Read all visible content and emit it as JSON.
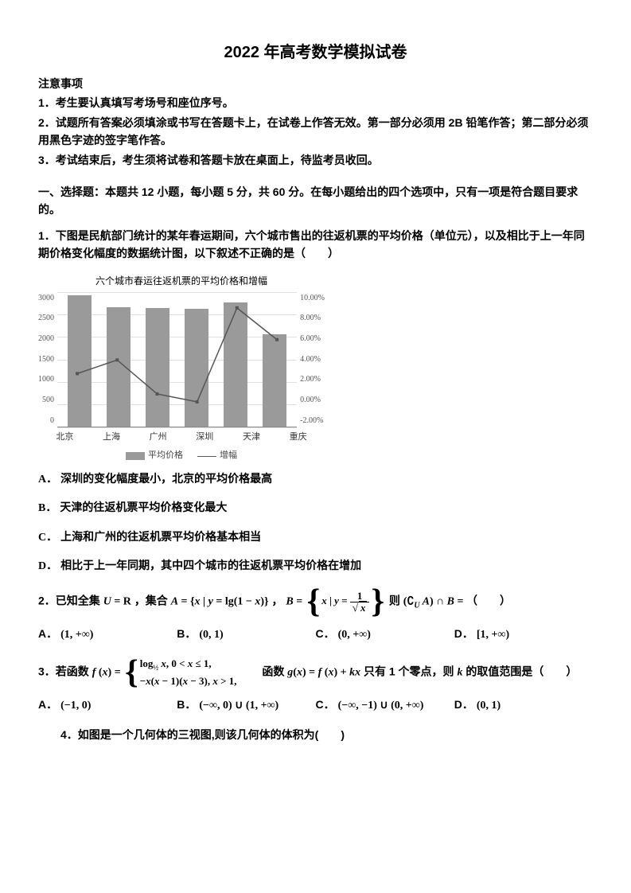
{
  "title": "2022 年高考数学模拟试卷",
  "notice_heading": "注意事项",
  "notices": [
    "1．考生要认真填写考场号和座位序号。",
    "2．试题所有答案必须填涂或书写在答题卡上，在试卷上作答无效。第一部分必须用 2B 铅笔作答；第二部分必须用黑色字迹的签字笔作答。",
    "3．考试结束后，考生须将试卷和答题卡放在桌面上，待监考员收回。"
  ],
  "section1": "一、选择题：本题共 12 小题，每小题 5 分，共 60 分。在每小题给出的四个选项中，只有一项是符合题目要求的。",
  "q1": {
    "text": "1．下图是民航部门统计的某年春运期间，六个城市售出的往返机票的平均价格（单位元），以及相比于上一年同期价格变化幅度的数据统计图，以下叙述不正确的是（　　）",
    "optA": "深圳的变化幅度最小，北京的平均价格最高",
    "optB": "天津的往返机票平均价格变化最大",
    "optC": "上海和广州的往返机票平均价格基本相当",
    "optD": "相比于上一年同期，其中四个城市的往返机票平均价格在增加"
  },
  "chart": {
    "title": "六个城市春运往返机票的平均价格和增幅",
    "categories": [
      "北京",
      "上海",
      "广州",
      "深圳",
      "天津",
      "重庆"
    ],
    "bar_values": [
      2900,
      2650,
      2620,
      2600,
      2750,
      2050
    ],
    "y_left_max": 3000,
    "y_left_step": 500,
    "line_values_pct": [
      2.8,
      4.0,
      1.0,
      0.3,
      8.6,
      5.8
    ],
    "y_right_min": -2,
    "y_right_max": 10,
    "y_right_step": 2,
    "bar_color": "#9a9a9a",
    "line_color": "#555555",
    "grid_color": "#e0e0e0",
    "bg": "#ffffff",
    "legend_bar": "平均价格",
    "legend_line": "增幅",
    "left_ticks": [
      "3000",
      "2500",
      "2000",
      "1500",
      "1000",
      "500",
      "0"
    ],
    "right_ticks": [
      "10.00%",
      "8.00%",
      "6.00%",
      "4.00%",
      "2.00%",
      "0.00%",
      "-2.00%"
    ]
  },
  "q2": {
    "prefix": "2．已知全集 ",
    "mid1": "，集合 ",
    "mid2": "，",
    "mid3": " 则 ",
    "suffix": "（　　）",
    "A": "(1, +∞)",
    "B": "(0, 1)",
    "C": "(0, +∞)",
    "D": "[1, +∞)"
  },
  "q3": {
    "prefix": "3．若函数 ",
    "mid": "　　函数 ",
    "suffix1": " 只有 1 个零点，则 ",
    "suffix2": " 的取值范围是（　　）",
    "A": "(−1, 0)",
    "B": "(−∞, 0) ∪ (1, +∞)",
    "C": "(−∞, −1) ∪ (0, +∞)",
    "D": "(0, 1)"
  },
  "q4": "4．如图是一个几何体的三视图,则该几何体的体积为(　　)",
  "labels": {
    "A": "A．",
    "B": "B．",
    "C": "C．",
    "D": "D．"
  }
}
